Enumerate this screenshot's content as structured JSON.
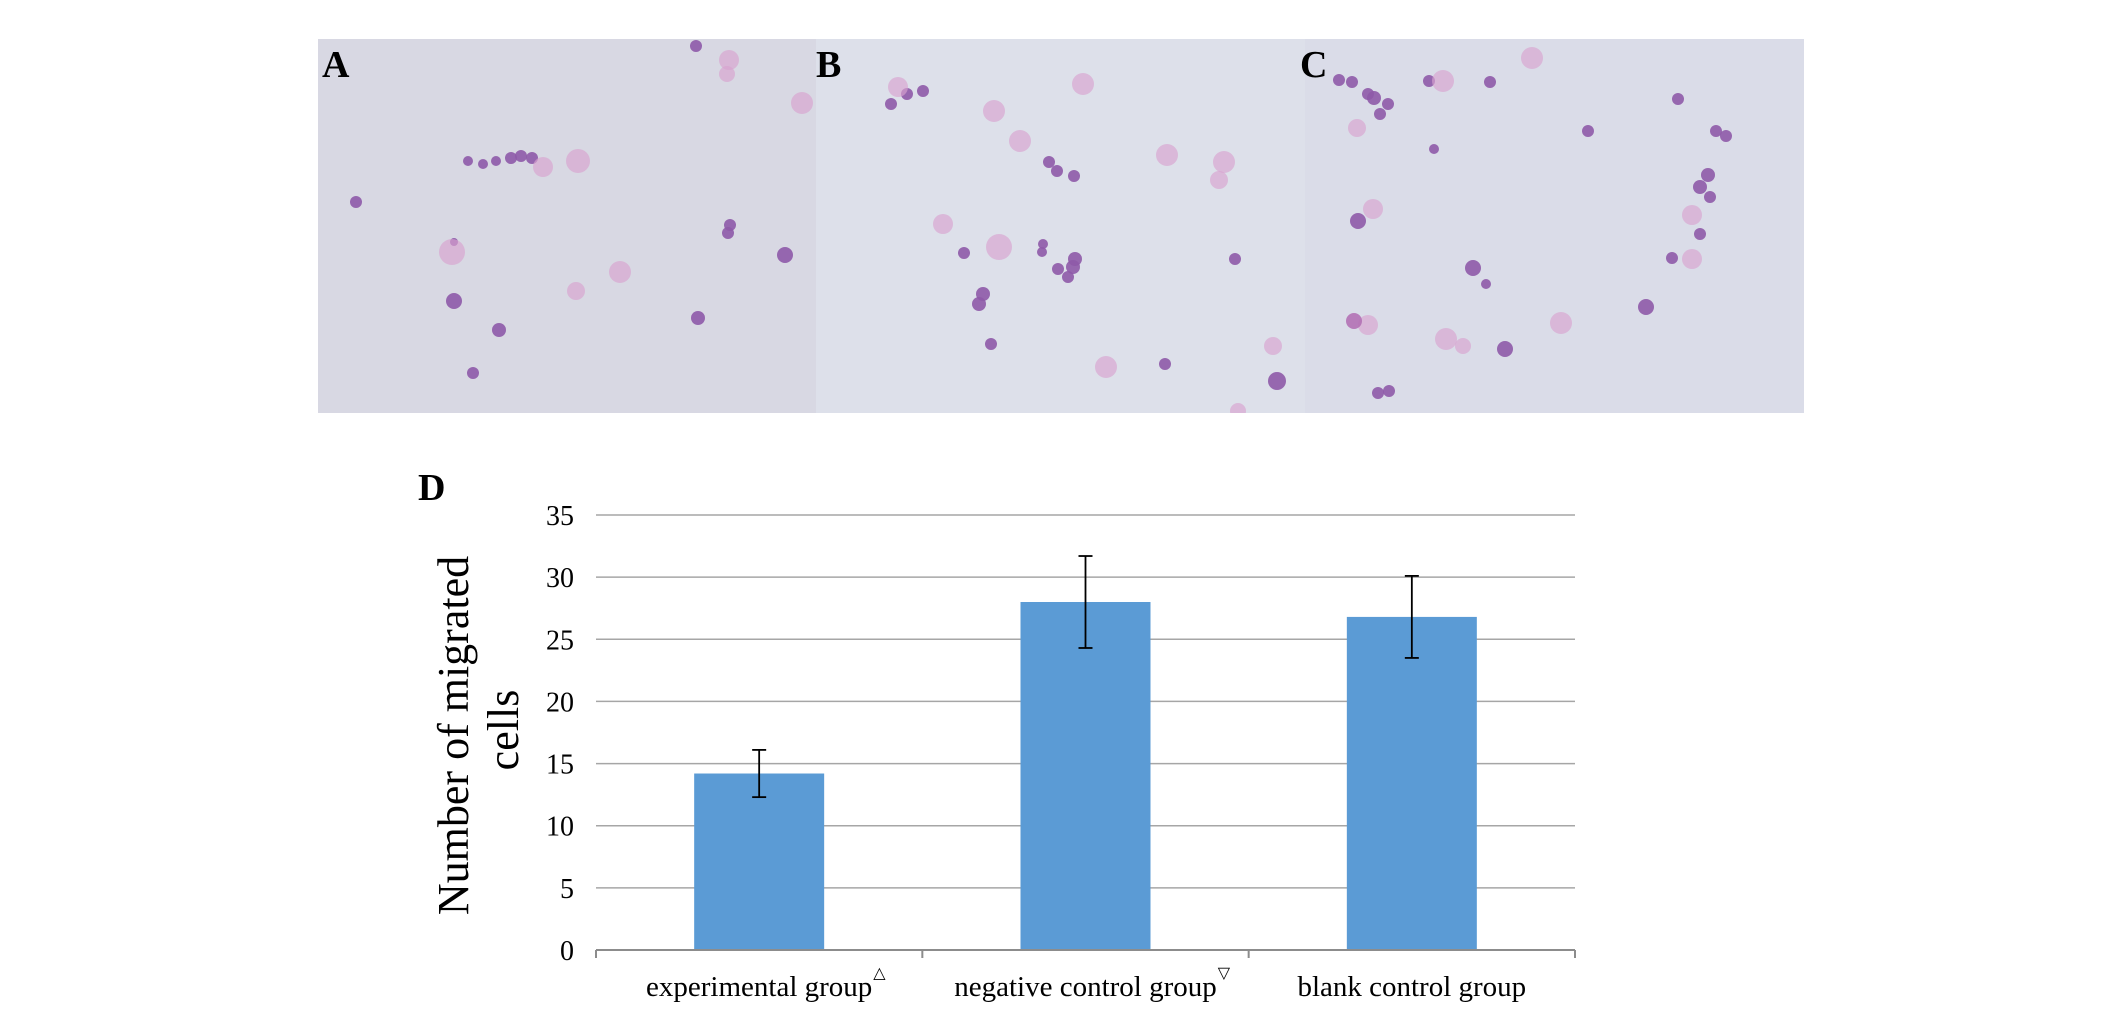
{
  "panels": [
    {
      "letter": "A"
    },
    {
      "letter": "B"
    },
    {
      "letter": "C"
    }
  ],
  "chart_panel_letter": "D",
  "colors": {
    "bar": "#5b9bd5",
    "grid": "#a6a6a6",
    "micrograph_background": "#dcdde8",
    "cell_stain": "#9b59b6"
  },
  "chart_data": {
    "type": "bar",
    "title": "",
    "xlabel": "",
    "ylabel": "Number of migrated cells",
    "ylabel_lines": [
      "Number of migrated",
      "cells"
    ],
    "categories": [
      "experimental group",
      "negative control group",
      "blank control group"
    ],
    "category_markers": [
      "△",
      "▽",
      ""
    ],
    "values": [
      14.2,
      28.0,
      26.8
    ],
    "error": [
      1.9,
      3.7,
      3.3
    ],
    "ylim": [
      0,
      35
    ],
    "yticks": [
      0,
      5,
      10,
      15,
      20,
      25,
      30,
      35
    ],
    "grid": true,
    "legend": "none"
  }
}
